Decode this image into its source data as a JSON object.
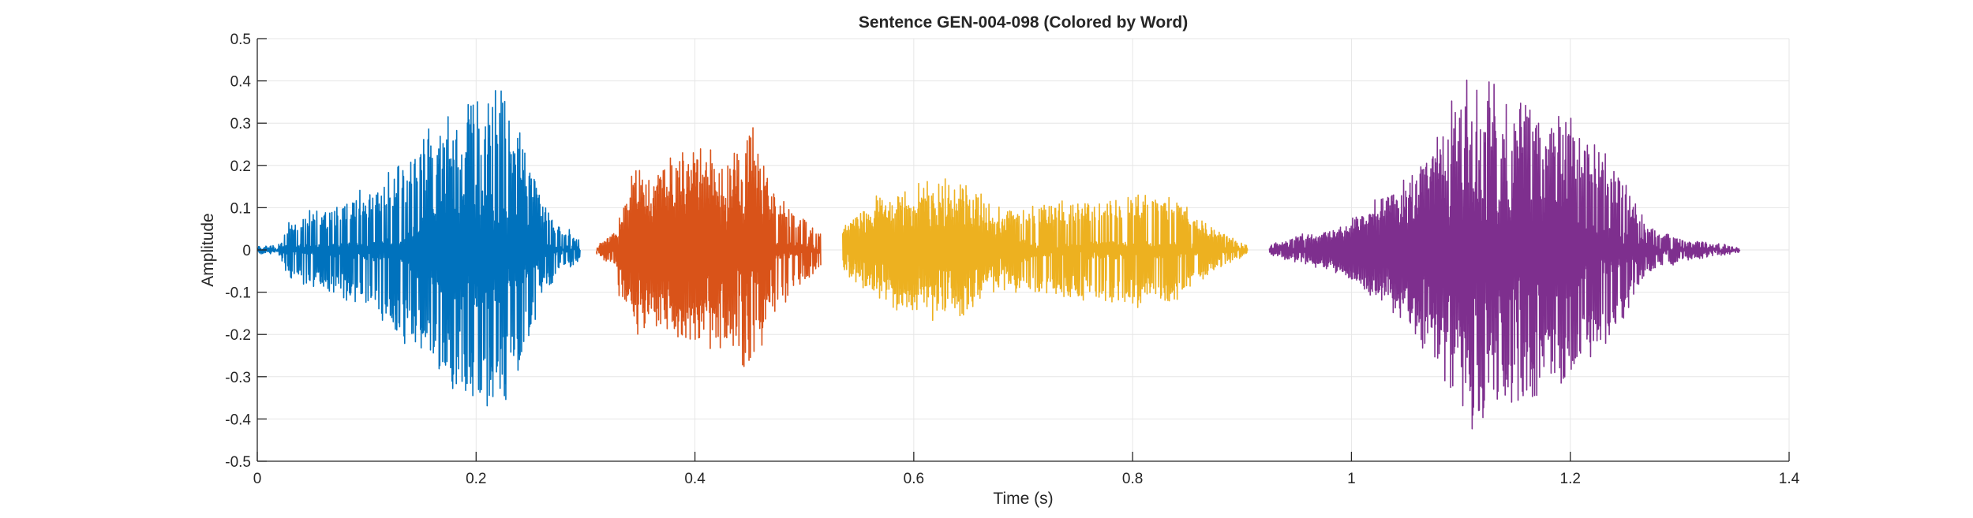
{
  "chart_data": {
    "type": "line",
    "title": "Sentence GEN-004-098 (Colored by Word)",
    "xlabel": "Time (s)",
    "ylabel": "Amplitude",
    "xlim": [
      0,
      1.4
    ],
    "ylim": [
      -0.5,
      0.5
    ],
    "xticks": [
      0,
      0.2,
      0.4,
      0.6,
      0.8,
      1,
      1.2,
      1.4
    ],
    "xtick_labels": [
      "0",
      "0.2",
      "0.4",
      "0.6",
      "0.8",
      "1",
      "1.2",
      "1.4"
    ],
    "yticks": [
      -0.5,
      -0.4,
      -0.3,
      -0.2,
      -0.1,
      0,
      0.1,
      0.2,
      0.3,
      0.4,
      0.5
    ],
    "ytick_labels": [
      "-0.5",
      "-0.4",
      "-0.3",
      "-0.2",
      "-0.1",
      "0",
      "0.1",
      "0.2",
      "0.3",
      "0.4",
      "0.5"
    ],
    "grid": true,
    "series": [
      {
        "color": "#0072BD",
        "x_start": 0.0,
        "x_end": 0.295,
        "envelope": [
          [
            0.0,
            0.005
          ],
          [
            0.02,
            0.01
          ],
          [
            0.03,
            0.08
          ],
          [
            0.06,
            0.1
          ],
          [
            0.1,
            0.15
          ],
          [
            0.14,
            0.24
          ],
          [
            0.17,
            0.33
          ],
          [
            0.2,
            0.38
          ],
          [
            0.22,
            0.41
          ],
          [
            0.24,
            0.3
          ],
          [
            0.26,
            0.12
          ],
          [
            0.275,
            0.06
          ],
          [
            0.295,
            0.03
          ]
        ],
        "dense_envelope": [
          [
            0.13,
            0.02
          ],
          [
            0.16,
            0.12
          ],
          [
            0.2,
            0.17
          ],
          [
            0.235,
            0.1
          ],
          [
            0.26,
            0.04
          ]
        ]
      },
      {
        "color": "#D95319",
        "x_start": 0.31,
        "x_end": 0.515,
        "envelope": [
          [
            0.31,
            0.01
          ],
          [
            0.33,
            0.05
          ],
          [
            0.34,
            0.2
          ],
          [
            0.37,
            0.22
          ],
          [
            0.4,
            0.25
          ],
          [
            0.43,
            0.24
          ],
          [
            0.45,
            0.32
          ],
          [
            0.47,
            0.16
          ],
          [
            0.49,
            0.1
          ],
          [
            0.515,
            0.04
          ]
        ],
        "dense_envelope": [
          [
            0.33,
            0.12
          ],
          [
            0.38,
            0.18
          ],
          [
            0.4,
            0.2
          ],
          [
            0.43,
            0.16
          ],
          [
            0.47,
            0.08
          ]
        ]
      },
      {
        "color": "#EDB120",
        "x_start": 0.535,
        "x_end": 0.905,
        "envelope": [
          [
            0.535,
            0.05
          ],
          [
            0.56,
            0.12
          ],
          [
            0.6,
            0.17
          ],
          [
            0.64,
            0.17
          ],
          [
            0.68,
            0.1
          ],
          [
            0.72,
            0.11
          ],
          [
            0.76,
            0.13
          ],
          [
            0.8,
            0.14
          ],
          [
            0.84,
            0.13
          ],
          [
            0.87,
            0.06
          ],
          [
            0.905,
            0.01
          ]
        ],
        "dense_envelope": [
          [
            0.54,
            0.06
          ],
          [
            0.6,
            0.12
          ],
          [
            0.65,
            0.1
          ],
          [
            0.7,
            0.03
          ],
          [
            0.72,
            0.0
          ]
        ]
      },
      {
        "color": "#7E2F8E",
        "x_start": 0.925,
        "x_end": 1.355,
        "envelope": [
          [
            0.925,
            0.01
          ],
          [
            0.96,
            0.04
          ],
          [
            0.99,
            0.05
          ],
          [
            1.02,
            0.12
          ],
          [
            1.05,
            0.18
          ],
          [
            1.08,
            0.3
          ],
          [
            1.105,
            0.45
          ],
          [
            1.14,
            0.4
          ],
          [
            1.18,
            0.36
          ],
          [
            1.22,
            0.28
          ],
          [
            1.25,
            0.18
          ],
          [
            1.27,
            0.06
          ],
          [
            1.3,
            0.03
          ],
          [
            1.355,
            0.005
          ]
        ],
        "dense_envelope": [
          [
            0.96,
            0.02
          ],
          [
            1.0,
            0.08
          ],
          [
            1.05,
            0.15
          ],
          [
            1.1,
            0.24
          ],
          [
            1.15,
            0.18
          ],
          [
            1.2,
            0.12
          ],
          [
            1.24,
            0.06
          ],
          [
            1.28,
            0.01
          ]
        ]
      }
    ]
  }
}
